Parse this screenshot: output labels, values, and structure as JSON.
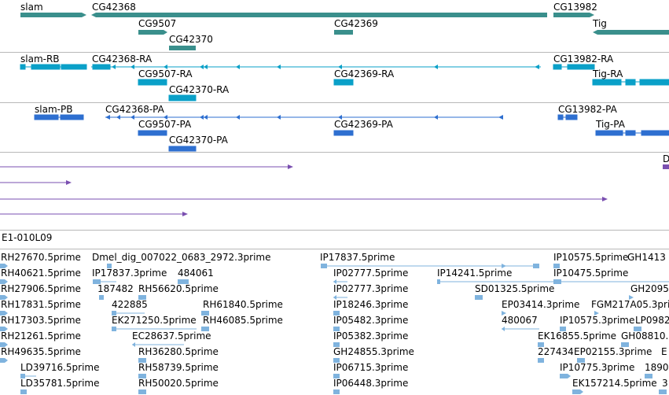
{
  "colors": {
    "gene": "#3a8f8c",
    "transcript": "#0aa0c8",
    "protein": "#2e6fd0",
    "alignment": "#7a4fb0",
    "est": "#7fb3de",
    "separator": "#b8b8b8"
  },
  "gene_labels": [
    "slam",
    "CG42368",
    "CG13982",
    "CG9507",
    "CG42369",
    "Tig",
    "CG42370"
  ],
  "transcript_labels": [
    "slam-RB",
    "CG42368-RA",
    "CG13982-RA",
    "CG9507-RA",
    "CG42369-RA",
    "Tig-RA",
    "CG42370-RA"
  ],
  "protein_labels": [
    "slam-PB",
    "CG42368-PA",
    "CG13982-PA",
    "CG9507-PA",
    "CG42369-PA",
    "Tig-PA",
    "CG42370-PA"
  ],
  "alignment_edge_label": "D",
  "clone_label": "E1-010L09",
  "est_labels": [
    "RH27670.5prime",
    "Dmel_dig_007022_0683_2972.3prime",
    "IP17837.5prime",
    "IP10575.5prime",
    "GH1413",
    "RH40621.5prime",
    "IP17837.3prime",
    "484061",
    "IP02777.5prime",
    "IP14241.5prime",
    "IP10475.5prime",
    "RH27906.5prime",
    "187482",
    "RH56620.5prime",
    "IP02777.3prime",
    "SD01325.5prime",
    "GH2095",
    "RH17831.5prime",
    "422885",
    "RH61840.5prime",
    "IP18246.3prime",
    "EP03414.3prime",
    "FGM217A05.3prime",
    "RH17303.5prime",
    "EK271250.5prime",
    "RH46085.5prime",
    "IP05482.3prime",
    "480067",
    "IP10575.3prime",
    "LP0982",
    "RH21261.5prime",
    "EC28637.5prime",
    "IP05382.3prime",
    "EK16855.5prime",
    "GH08810.",
    "RH49635.5prime",
    "RH36280.5prime",
    "GH24855.3prime",
    "227434",
    "EP02155.3prime",
    "E",
    "LD39716.5prime",
    "RH58739.5prime",
    "IP06715.3prime",
    "IP10775.3prime",
    "1890",
    "LD35781.5prime",
    "RH50020.5prime",
    "IP06448.3prime",
    "EK157214.5prime",
    "3"
  ]
}
